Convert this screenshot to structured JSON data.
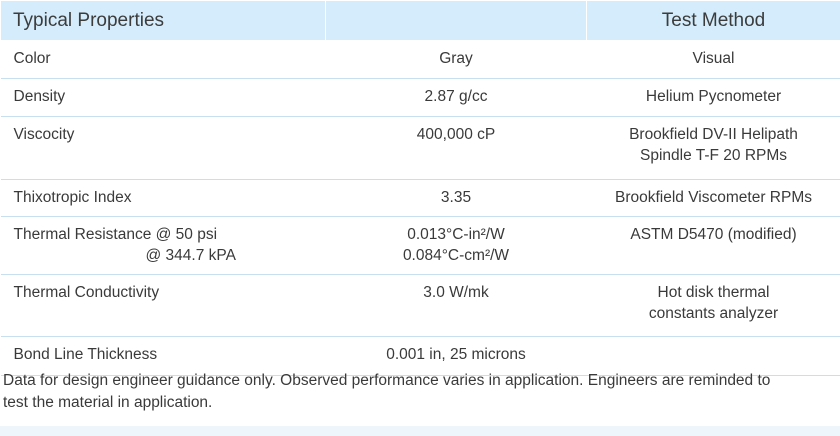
{
  "header": {
    "col1": "Typical Properties",
    "col2": "",
    "col3": "Test Method"
  },
  "rows": [
    {
      "property": "Color",
      "value": "Gray",
      "method": "Visual"
    },
    {
      "property": "Density",
      "value": "2.87 g/cc",
      "method": "Helium Pycnometer"
    },
    {
      "property": "Viscocity",
      "value": "400,000 cP",
      "method_line1": "Brookfield DV-II Helipath",
      "method_line2": "Spindle T-F 20 RPMs"
    },
    {
      "property": "Thixotropic Index",
      "value": "3.35",
      "method": "Brookfield Viscometer RPMs"
    },
    {
      "property_line1": "Thermal Resistance @ 50 psi",
      "property_line2": "@ 344.7 kPA",
      "value_line1": "0.013°C-in²/W",
      "value_line2": "0.084°C-cm²/W",
      "method": "ASTM D5470 (modified)"
    },
    {
      "property": "Thermal Conductivity",
      "value": "3.0 W/mk",
      "method_line1": "Hot disk thermal",
      "method_line2": "constants analyzer"
    },
    {
      "property": "Bond Line Thickness",
      "value": "0.001 in, 25 microns",
      "method": ""
    }
  ],
  "note": {
    "line1": "Data for design engineer guidance only. Observed performance varies in application. Engineers are reminded to",
    "line2": "test the material in application."
  }
}
